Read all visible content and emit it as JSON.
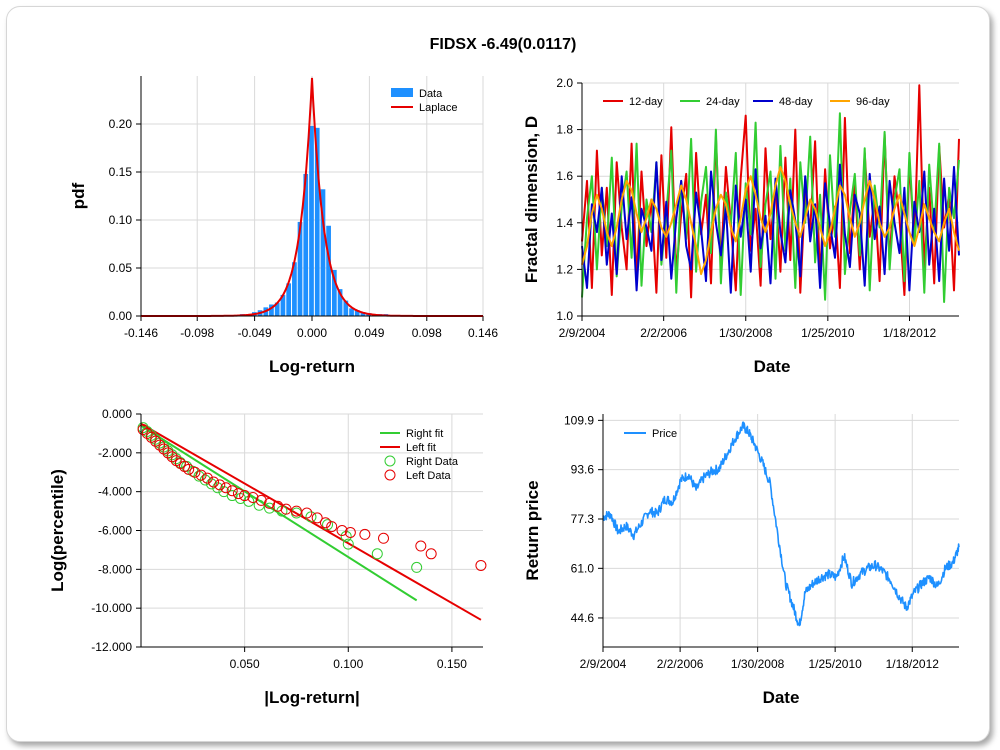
{
  "title": "FIDSX -6.49(0.0117)",
  "chart_data": [
    {
      "type": "bar",
      "xlabel": "Log-return",
      "ylabel": "pdf",
      "xlim": [
        -0.146,
        0.146
      ],
      "ylim": [
        0,
        0.25
      ],
      "x_ticks": [
        "-0.146",
        "-0.098",
        "-0.049",
        "0.000",
        "0.049",
        "0.098",
        "0.146"
      ],
      "x_tick_values": [
        -0.146,
        -0.098,
        -0.049,
        0.0,
        0.049,
        0.098,
        0.146
      ],
      "y_ticks": [
        "0.00",
        "0.05",
        "0.10",
        "0.15",
        "0.20"
      ],
      "y_tick_values": [
        0,
        0.05,
        0.1,
        0.15,
        0.2
      ],
      "legend": [
        {
          "name": "Data",
          "color": "#1e90ff",
          "kind": "bar"
        },
        {
          "name": "Laplace",
          "color": "#e60000",
          "kind": "line"
        }
      ],
      "bin_width": 0.00488,
      "bins": [
        {
          "x": -0.117,
          "y": 0.001
        },
        {
          "x": -0.098,
          "y": 0.001
        },
        {
          "x": -0.078,
          "y": 0.001
        },
        {
          "x": -0.059,
          "y": 0.002
        },
        {
          "x": -0.0537,
          "y": 0.002
        },
        {
          "x": -0.0488,
          "y": 0.004
        },
        {
          "x": -0.0439,
          "y": 0.006
        },
        {
          "x": -0.039,
          "y": 0.009
        },
        {
          "x": -0.0342,
          "y": 0.012
        },
        {
          "x": -0.0293,
          "y": 0.014
        },
        {
          "x": -0.0244,
          "y": 0.022
        },
        {
          "x": -0.0195,
          "y": 0.034
        },
        {
          "x": -0.0146,
          "y": 0.056
        },
        {
          "x": -0.0098,
          "y": 0.098
        },
        {
          "x": -0.0049,
          "y": 0.148
        },
        {
          "x": 0.0,
          "y": 0.198
        },
        {
          "x": 0.0049,
          "y": 0.196
        },
        {
          "x": 0.0098,
          "y": 0.132
        },
        {
          "x": 0.0146,
          "y": 0.094
        },
        {
          "x": 0.0195,
          "y": 0.048
        },
        {
          "x": 0.0244,
          "y": 0.028
        },
        {
          "x": 0.0293,
          "y": 0.016
        },
        {
          "x": 0.0342,
          "y": 0.008
        },
        {
          "x": 0.039,
          "y": 0.006
        },
        {
          "x": 0.0439,
          "y": 0.004
        },
        {
          "x": 0.0488,
          "y": 0.003
        },
        {
          "x": 0.0537,
          "y": 0.002
        },
        {
          "x": 0.0586,
          "y": 0.002
        },
        {
          "x": 0.0635,
          "y": 0.002
        },
        {
          "x": 0.0684,
          "y": 0.001
        },
        {
          "x": 0.0781,
          "y": 0.001
        },
        {
          "x": 0.0879,
          "y": 0.001
        },
        {
          "x": 0.1074,
          "y": 0.001
        }
      ],
      "laplace": {
        "location": 0.0,
        "scale": 0.0102,
        "peak": 0.248
      }
    },
    {
      "type": "line",
      "xlabel": "Date",
      "ylabel": "Fractal dimension, D",
      "ylim": [
        1.0,
        2.0
      ],
      "x_ticks": [
        "2/9/2004",
        "2/2/2006",
        "1/30/2008",
        "1/25/2010",
        "1/18/2012"
      ],
      "y_ticks": [
        "1.0",
        "1.2",
        "1.4",
        "1.6",
        "1.8",
        "2.0"
      ],
      "y_tick_values": [
        1.0,
        1.2,
        1.4,
        1.6,
        1.8,
        2.0
      ],
      "x_range_years": [
        2004.11,
        2013.25
      ],
      "x_tick_years": [
        2004.11,
        2006.09,
        2008.08,
        2010.07,
        2012.05
      ],
      "legend_position": "top",
      "series": [
        {
          "name": "12-day",
          "color": "#e60000",
          "values": [
            1.32,
            1.58,
            1.12,
            1.71,
            1.26,
            1.55,
            1.09,
            1.66,
            1.38,
            1.2,
            1.74,
            1.15,
            1.62,
            1.3,
            1.5,
            1.1,
            1.69,
            1.25,
            1.81,
            1.18,
            1.44,
            1.61,
            1.08,
            1.7,
            1.35,
            1.52,
            1.14,
            1.77,
            1.22,
            1.64,
            1.4,
            1.11,
            1.59,
            1.86,
            1.28,
            1.46,
            1.13,
            1.72,
            1.33,
            1.56,
            1.19,
            1.68,
            1.24,
            1.8,
            1.1,
            1.53,
            1.37,
            1.75,
            1.16,
            1.63,
            1.29,
            1.47,
            1.12,
            1.85,
            1.27,
            1.57,
            1.2,
            1.7,
            1.34,
            1.51,
            1.15,
            1.78,
            1.23,
            1.6,
            1.42,
            1.09,
            1.66,
            1.31,
            1.99,
            1.21,
            1.55,
            1.14,
            1.73,
            1.38,
            1.52,
            1.11,
            1.76
          ]
        },
        {
          "name": "24-day",
          "color": "#32cd32",
          "values": [
            1.08,
            1.42,
            1.6,
            1.2,
            1.55,
            1.3,
            1.68,
            1.17,
            1.47,
            1.62,
            1.25,
            1.74,
            1.13,
            1.5,
            1.36,
            1.66,
            1.22,
            1.44,
            1.71,
            1.1,
            1.58,
            1.33,
            1.76,
            1.19,
            1.49,
            1.64,
            1.27,
            1.8,
            1.14,
            1.53,
            1.39,
            1.7,
            1.09,
            1.57,
            1.35,
            1.83,
            1.21,
            1.48,
            1.62,
            1.16,
            1.73,
            1.28,
            1.59,
            1.12,
            1.66,
            1.4,
            1.77,
            1.23,
            1.52,
            1.07,
            1.69,
            1.34,
            1.87,
            1.18,
            1.45,
            1.61,
            1.26,
            1.72,
            1.11,
            1.56,
            1.38,
            1.79,
            1.2,
            1.5,
            1.63,
            1.15,
            1.7,
            1.31,
            1.58,
            1.1,
            1.65,
            1.36,
            1.74,
            1.06,
            1.55,
            1.42,
            1.67
          ]
        },
        {
          "name": "48-day",
          "color": "#0000cd",
          "values": [
            1.3,
            1.12,
            1.48,
            1.36,
            1.55,
            1.22,
            1.44,
            1.18,
            1.6,
            1.33,
            1.51,
            1.11,
            1.46,
            1.38,
            1.28,
            1.66,
            1.24,
            1.49,
            1.16,
            1.42,
            1.58,
            1.3,
            1.2,
            1.53,
            1.37,
            1.15,
            1.62,
            1.4,
            1.26,
            1.47,
            1.1,
            1.56,
            1.34,
            1.5,
            1.19,
            1.63,
            1.29,
            1.43,
            1.14,
            1.59,
            1.36,
            1.23,
            1.54,
            1.41,
            1.17,
            1.6,
            1.32,
            1.48,
            1.12,
            1.57,
            1.39,
            1.25,
            1.65,
            1.35,
            1.21,
            1.52,
            1.44,
            1.13,
            1.61,
            1.33,
            1.47,
            1.18,
            1.58,
            1.4,
            1.27,
            1.55,
            1.11,
            1.49,
            1.36,
            1.62,
            1.22,
            1.46,
            1.15,
            1.59,
            1.28,
            1.64,
            1.26
          ]
        },
        {
          "name": "96-day",
          "color": "#ffa500",
          "values": [
            1.22,
            1.3,
            1.44,
            1.52,
            1.46,
            1.36,
            1.3,
            1.38,
            1.5,
            1.58,
            1.54,
            1.44,
            1.36,
            1.42,
            1.5,
            1.46,
            1.38,
            1.34,
            1.4,
            1.48,
            1.56,
            1.5,
            1.4,
            1.3,
            1.18,
            1.24,
            1.36,
            1.46,
            1.52,
            1.48,
            1.38,
            1.32,
            1.42,
            1.54,
            1.6,
            1.52,
            1.42,
            1.36,
            1.44,
            1.56,
            1.64,
            1.58,
            1.48,
            1.4,
            1.34,
            1.42,
            1.5,
            1.46,
            1.38,
            1.3,
            1.36,
            1.46,
            1.56,
            1.52,
            1.42,
            1.34,
            1.4,
            1.5,
            1.58,
            1.5,
            1.4,
            1.34,
            1.38,
            1.46,
            1.52,
            1.44,
            1.36,
            1.3,
            1.38,
            1.48,
            1.42,
            1.36,
            1.32,
            1.4,
            1.46,
            1.36,
            1.28
          ]
        }
      ]
    },
    {
      "type": "scatter",
      "xlabel": "|Log-return|",
      "ylabel": "Log(percentile)",
      "xlim": [
        0,
        0.165
      ],
      "ylim": [
        -12,
        0
      ],
      "x_ticks": [
        "0.050",
        "0.100",
        "0.150"
      ],
      "x_tick_values": [
        0.05,
        0.1,
        0.15
      ],
      "y_ticks": [
        "0.000",
        "-2.000",
        "-4.000",
        "-6.000",
        "-8.000",
        "-10.000",
        "-12.000"
      ],
      "y_tick_values": [
        0,
        -2,
        -4,
        -6,
        -8,
        -10,
        -12
      ],
      "legend_position": "top-right",
      "lines": [
        {
          "name": "Right fit",
          "color": "#32cd32",
          "points": [
            [
              0.0,
              -0.6
            ],
            [
              0.133,
              -9.6
            ]
          ]
        },
        {
          "name": "Left fit",
          "color": "#e60000",
          "points": [
            [
              0.0,
              -0.5
            ],
            [
              0.164,
              -10.6
            ]
          ]
        }
      ],
      "series": [
        {
          "name": "Right Data",
          "color": "#32cd32",
          "points": [
            [
              0.001,
              -0.7
            ],
            [
              0.003,
              -0.9
            ],
            [
              0.005,
              -1.1
            ],
            [
              0.007,
              -1.3
            ],
            [
              0.009,
              -1.5
            ],
            [
              0.011,
              -1.7
            ],
            [
              0.013,
              -1.9
            ],
            [
              0.015,
              -2.1
            ],
            [
              0.017,
              -2.3
            ],
            [
              0.019,
              -2.5
            ],
            [
              0.022,
              -2.7
            ],
            [
              0.025,
              -2.95
            ],
            [
              0.028,
              -3.2
            ],
            [
              0.031,
              -3.4
            ],
            [
              0.034,
              -3.6
            ],
            [
              0.037,
              -3.8
            ],
            [
              0.04,
              -4.0
            ],
            [
              0.044,
              -4.2
            ],
            [
              0.048,
              -4.35
            ],
            [
              0.052,
              -4.5
            ],
            [
              0.057,
              -4.7
            ],
            [
              0.062,
              -4.85
            ],
            [
              0.068,
              -5.0
            ],
            [
              0.075,
              -5.1
            ],
            [
              0.082,
              -5.3
            ],
            [
              0.09,
              -5.7
            ],
            [
              0.099,
              -6.3
            ],
            [
              0.1,
              -6.7
            ],
            [
              0.114,
              -7.2
            ],
            [
              0.133,
              -7.9
            ]
          ]
        },
        {
          "name": "Left Data",
          "color": "#e60000",
          "points": [
            [
              0.001,
              -0.8
            ],
            [
              0.003,
              -1.0
            ],
            [
              0.005,
              -1.2
            ],
            [
              0.007,
              -1.4
            ],
            [
              0.009,
              -1.6
            ],
            [
              0.011,
              -1.8
            ],
            [
              0.013,
              -2.0
            ],
            [
              0.015,
              -2.2
            ],
            [
              0.017,
              -2.4
            ],
            [
              0.019,
              -2.55
            ],
            [
              0.021,
              -2.7
            ],
            [
              0.023,
              -2.85
            ],
            [
              0.026,
              -3.0
            ],
            [
              0.029,
              -3.15
            ],
            [
              0.032,
              -3.3
            ],
            [
              0.035,
              -3.5
            ],
            [
              0.038,
              -3.65
            ],
            [
              0.041,
              -3.8
            ],
            [
              0.044,
              -3.95
            ],
            [
              0.047,
              -4.1
            ],
            [
              0.05,
              -4.2
            ],
            [
              0.054,
              -4.3
            ],
            [
              0.058,
              -4.45
            ],
            [
              0.062,
              -4.6
            ],
            [
              0.066,
              -4.75
            ],
            [
              0.07,
              -4.9
            ],
            [
              0.075,
              -5.0
            ],
            [
              0.08,
              -5.1
            ],
            [
              0.085,
              -5.35
            ],
            [
              0.089,
              -5.6
            ],
            [
              0.092,
              -5.8
            ],
            [
              0.097,
              -6.0
            ],
            [
              0.101,
              -6.1
            ],
            [
              0.108,
              -6.2
            ],
            [
              0.117,
              -6.4
            ],
            [
              0.135,
              -6.8
            ],
            [
              0.14,
              -7.2
            ],
            [
              0.164,
              -7.8
            ]
          ]
        }
      ]
    },
    {
      "type": "line",
      "xlabel": "Date",
      "ylabel": "Return price",
      "ylim": [
        35.0,
        112.0
      ],
      "x_ticks": [
        "2/9/2004",
        "2/2/2006",
        "1/30/2008",
        "1/25/2010",
        "1/18/2012"
      ],
      "y_ticks": [
        "109.9",
        "93.6",
        "77.3",
        "61.0",
        "44.6"
      ],
      "y_tick_values": [
        109.9,
        93.6,
        77.3,
        61.0,
        44.6
      ],
      "x_range_years": [
        2004.11,
        2013.25
      ],
      "x_tick_years": [
        2004.11,
        2006.09,
        2008.08,
        2010.07,
        2012.05
      ],
      "legend_position": "top-left",
      "series": [
        {
          "name": "Price",
          "color": "#1e90ff",
          "x": [
            2004.11,
            2004.3,
            2004.5,
            2004.7,
            2004.9,
            2005.1,
            2005.3,
            2005.5,
            2005.7,
            2005.9,
            2006.1,
            2006.3,
            2006.5,
            2006.7,
            2006.9,
            2007.1,
            2007.3,
            2007.5,
            2007.7,
            2007.85,
            2008.0,
            2008.2,
            2008.4,
            2008.6,
            2008.8,
            2009.0,
            2009.15,
            2009.3,
            2009.5,
            2009.7,
            2009.9,
            2010.1,
            2010.3,
            2010.5,
            2010.7,
            2010.9,
            2011.1,
            2011.3,
            2011.5,
            2011.7,
            2011.9,
            2012.1,
            2012.3,
            2012.5,
            2012.7,
            2012.9,
            2013.1,
            2013.25
          ],
          "values": [
            78,
            79,
            73,
            75,
            72,
            76,
            80,
            79,
            84,
            83,
            90,
            92,
            87,
            91,
            93,
            94,
            99,
            104,
            108,
            106,
            102,
            96,
            89,
            72,
            56,
            48,
            42,
            53,
            56,
            58,
            59,
            58,
            65,
            56,
            59,
            61,
            62,
            60,
            57,
            52,
            48,
            53,
            56,
            58,
            55,
            61,
            63,
            68
          ]
        }
      ]
    }
  ]
}
